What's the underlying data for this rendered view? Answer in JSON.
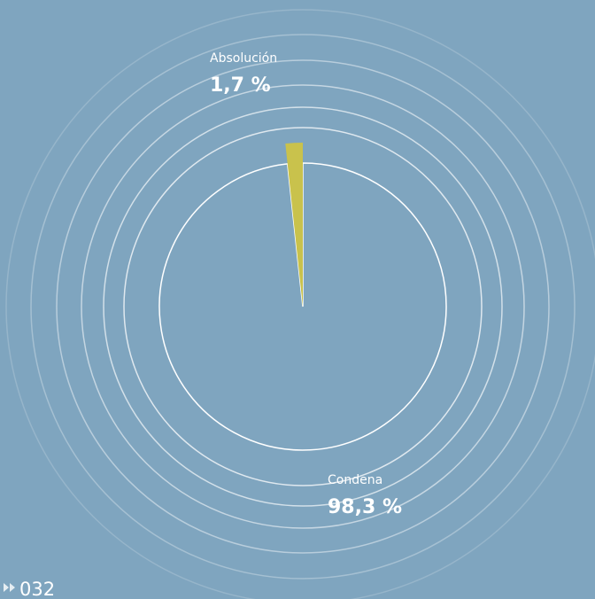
{
  "chart_data": {
    "type": "pie",
    "categories": [
      "Absolución",
      "Condena"
    ],
    "values": [
      1.7,
      98.3
    ],
    "value_labels": [
      "1,7 %",
      "98,3 %"
    ],
    "colors": [
      "#c9c24c",
      "#7fa5bf"
    ]
  },
  "page_number": "032"
}
